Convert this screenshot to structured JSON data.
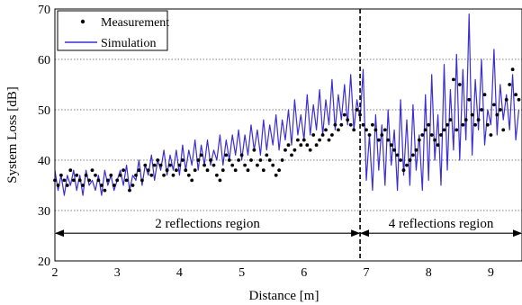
{
  "chart_data": {
    "type": "line",
    "xlabel": "Distance [m]",
    "ylabel": "System Loss [dB]",
    "xlim": [
      2,
      9.5
    ],
    "ylim": [
      20,
      70
    ],
    "x_ticks": [
      2,
      3,
      4,
      5,
      6,
      7,
      8,
      9
    ],
    "y_ticks": [
      20,
      30,
      40,
      50,
      60,
      70
    ],
    "grid": "horizontal-dotted",
    "legend_position": "top-left",
    "series": [
      {
        "name": "Measurement",
        "style": "scatter",
        "color": "#000000",
        "x": [
          2.0,
          2.05,
          2.1,
          2.15,
          2.2,
          2.25,
          2.3,
          2.35,
          2.4,
          2.45,
          2.5,
          2.55,
          2.6,
          2.65,
          2.7,
          2.75,
          2.8,
          2.85,
          2.9,
          2.95,
          3.0,
          3.05,
          3.1,
          3.15,
          3.2,
          3.25,
          3.3,
          3.35,
          3.4,
          3.45,
          3.5,
          3.55,
          3.6,
          3.65,
          3.7,
          3.75,
          3.8,
          3.85,
          3.9,
          3.95,
          4.0,
          4.05,
          4.1,
          4.15,
          4.2,
          4.25,
          4.3,
          4.35,
          4.4,
          4.45,
          4.5,
          4.55,
          4.6,
          4.65,
          4.7,
          4.75,
          4.8,
          4.85,
          4.9,
          4.95,
          5.0,
          5.05,
          5.1,
          5.15,
          5.2,
          5.25,
          5.3,
          5.35,
          5.4,
          5.45,
          5.5,
          5.55,
          5.6,
          5.65,
          5.7,
          5.75,
          5.8,
          5.85,
          5.9,
          5.95,
          6.0,
          6.05,
          6.1,
          6.15,
          6.2,
          6.25,
          6.3,
          6.35,
          6.4,
          6.45,
          6.5,
          6.55,
          6.6,
          6.65,
          6.7,
          6.75,
          6.8,
          6.85,
          6.9,
          6.95,
          7.0,
          7.05,
          7.1,
          7.15,
          7.2,
          7.25,
          7.3,
          7.35,
          7.4,
          7.45,
          7.5,
          7.55,
          7.6,
          7.65,
          7.7,
          7.75,
          7.8,
          7.85,
          7.9,
          7.95,
          8.0,
          8.05,
          8.1,
          8.15,
          8.2,
          8.25,
          8.3,
          8.35,
          8.4,
          8.45,
          8.5,
          8.55,
          8.6,
          8.65,
          8.7,
          8.75,
          8.8,
          8.85,
          8.9,
          8.95,
          9.0,
          9.05,
          9.1,
          9.15,
          9.2,
          9.25,
          9.3,
          9.35,
          9.4,
          9.45
        ],
        "y": [
          36,
          35,
          37,
          36,
          35,
          38,
          36,
          37,
          36,
          35,
          37,
          36,
          38,
          37,
          36,
          35,
          34,
          36,
          37,
          35,
          36,
          37,
          38,
          36,
          34,
          35,
          37,
          38,
          36,
          39,
          38,
          37,
          39,
          40,
          39,
          37,
          38,
          39,
          37,
          38,
          39,
          40,
          38,
          37,
          36,
          38,
          40,
          41,
          39,
          38,
          40,
          39,
          37,
          36,
          38,
          41,
          40,
          39,
          38,
          40,
          41,
          39,
          38,
          40,
          42,
          39,
          40,
          38,
          41,
          40,
          39,
          37,
          38,
          40,
          42,
          43,
          41,
          42,
          44,
          43,
          44,
          43,
          42,
          45,
          43,
          44,
          45,
          46,
          44,
          45,
          47,
          46,
          47,
          49,
          48,
          47,
          46,
          50,
          49,
          47,
          46,
          45,
          47,
          46,
          44,
          45,
          46,
          44,
          43,
          42,
          41,
          40,
          38,
          39,
          40,
          41,
          42,
          44,
          45,
          46,
          47,
          45,
          44,
          43,
          45,
          46,
          47,
          48,
          56,
          46,
          55,
          47,
          48,
          52,
          49,
          47,
          48,
          50,
          53,
          47,
          45,
          51,
          49,
          50,
          46,
          52,
          55,
          58,
          53,
          52
        ]
      },
      {
        "name": "Simulation",
        "style": "line",
        "color": "#3b2fd1",
        "x": [
          2.0,
          2.05,
          2.1,
          2.15,
          2.2,
          2.25,
          2.3,
          2.35,
          2.4,
          2.45,
          2.5,
          2.55,
          2.6,
          2.65,
          2.7,
          2.75,
          2.8,
          2.85,
          2.9,
          2.95,
          3.0,
          3.05,
          3.1,
          3.15,
          3.2,
          3.25,
          3.3,
          3.35,
          3.4,
          3.45,
          3.5,
          3.55,
          3.6,
          3.65,
          3.7,
          3.75,
          3.8,
          3.85,
          3.9,
          3.95,
          4.0,
          4.05,
          4.1,
          4.15,
          4.2,
          4.25,
          4.3,
          4.35,
          4.4,
          4.45,
          4.5,
          4.55,
          4.6,
          4.65,
          4.7,
          4.75,
          4.8,
          4.85,
          4.9,
          4.95,
          5.0,
          5.05,
          5.1,
          5.15,
          5.2,
          5.25,
          5.3,
          5.35,
          5.4,
          5.45,
          5.5,
          5.55,
          5.6,
          5.65,
          5.7,
          5.75,
          5.8,
          5.85,
          5.9,
          5.95,
          6.0,
          6.05,
          6.1,
          6.15,
          6.2,
          6.25,
          6.3,
          6.35,
          6.4,
          6.45,
          6.5,
          6.55,
          6.6,
          6.65,
          6.7,
          6.75,
          6.8,
          6.85,
          6.9,
          6.95,
          7.0,
          7.05,
          7.1,
          7.15,
          7.2,
          7.25,
          7.3,
          7.35,
          7.4,
          7.45,
          7.5,
          7.55,
          7.6,
          7.65,
          7.7,
          7.75,
          7.8,
          7.85,
          7.9,
          7.95,
          8.0,
          8.05,
          8.1,
          8.15,
          8.2,
          8.25,
          8.3,
          8.35,
          8.4,
          8.45,
          8.5,
          8.55,
          8.6,
          8.65,
          8.7,
          8.75,
          8.8,
          8.85,
          8.9,
          8.95,
          9.0,
          9.05,
          9.1,
          9.15,
          9.2,
          9.25,
          9.3,
          9.35,
          9.4,
          9.45
        ],
        "y": [
          38,
          34,
          37,
          33,
          37,
          35,
          38,
          34,
          37,
          33,
          38,
          35,
          36,
          34,
          37,
          33,
          38,
          35,
          37,
          34,
          36,
          38,
          35,
          39,
          34,
          37,
          36,
          40,
          35,
          39,
          37,
          41,
          36,
          40,
          38,
          42,
          37,
          41,
          38,
          42,
          37,
          43,
          38,
          42,
          39,
          44,
          38,
          43,
          39,
          44,
          39,
          42,
          40,
          45,
          39,
          44,
          40,
          45,
          41,
          46,
          40,
          45,
          41,
          47,
          42,
          46,
          41,
          48,
          42,
          47,
          43,
          49,
          42,
          48,
          44,
          50,
          43,
          52,
          45,
          49,
          44,
          53,
          45,
          51,
          46,
          54,
          45,
          52,
          47,
          56,
          46,
          53,
          48,
          55,
          47,
          57,
          46,
          52,
          48,
          58,
          36,
          45,
          34,
          49,
          38,
          47,
          35,
          50,
          39,
          46,
          34,
          52,
          37,
          48,
          35,
          51,
          38,
          45,
          34,
          53,
          36,
          57,
          40,
          49,
          35,
          59,
          38,
          54,
          42,
          61,
          40,
          58,
          44,
          69,
          41,
          56,
          46,
          60,
          43,
          50,
          47,
          62,
          45,
          55,
          48,
          53,
          46,
          57,
          44,
          50
        ]
      }
    ],
    "annotations": [
      {
        "type": "vline",
        "x": 6.9,
        "style": "dashed"
      },
      {
        "type": "double-arrow",
        "x1": 2.0,
        "x2": 6.9,
        "y": 25.5,
        "label": "2  reflections region"
      },
      {
        "type": "double-arrow",
        "x1": 6.9,
        "x2": 9.5,
        "y": 25.5,
        "label": "4  reflections region"
      }
    ]
  }
}
